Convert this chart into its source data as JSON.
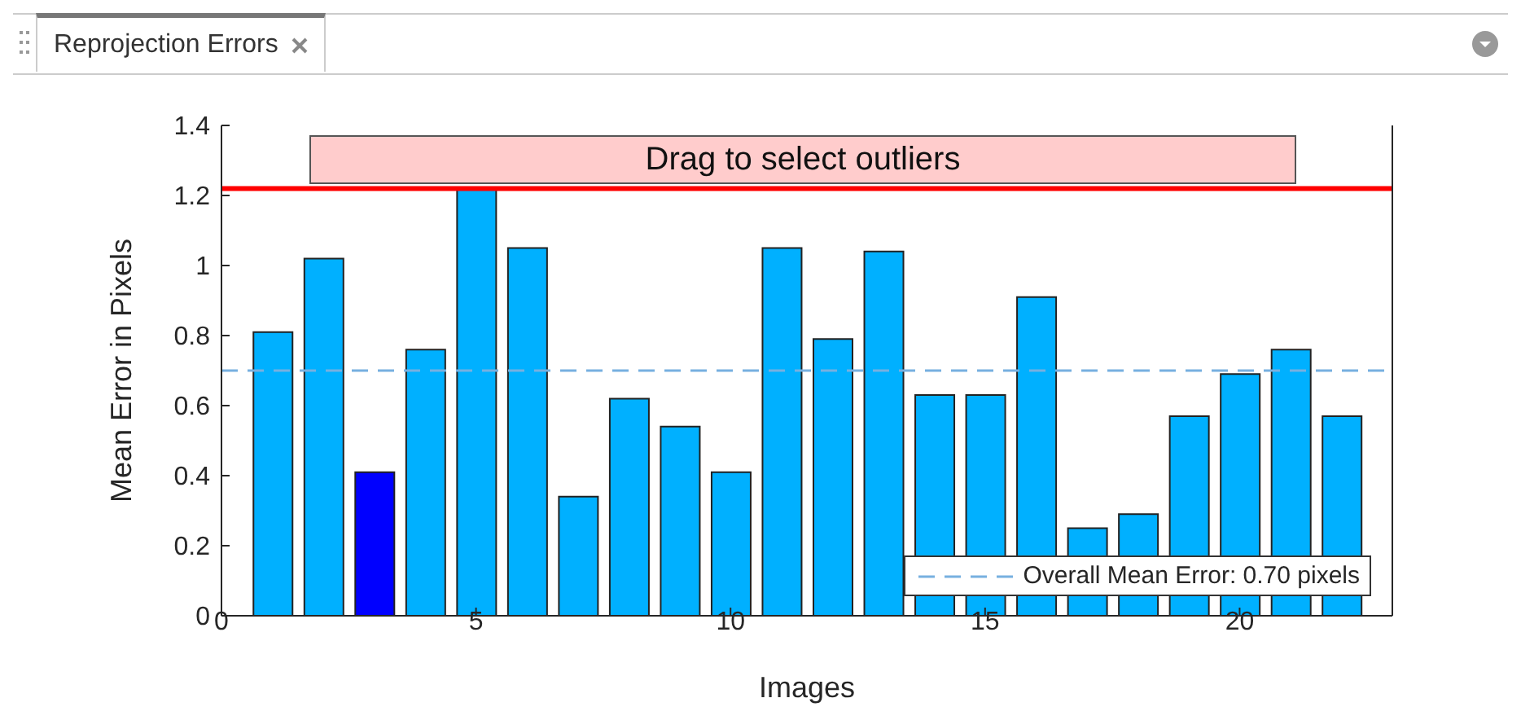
{
  "chart_data": {
    "type": "bar",
    "title": "Reprojection Errors",
    "xlabel": "Images",
    "ylabel": "Mean Error in Pixels",
    "x": [
      1,
      2,
      3,
      4,
      5,
      6,
      7,
      8,
      9,
      10,
      11,
      12,
      13,
      14,
      15,
      16,
      17,
      18,
      19,
      20,
      21,
      22
    ],
    "values": [
      0.81,
      1.02,
      0.41,
      0.76,
      1.22,
      1.05,
      0.34,
      0.62,
      0.54,
      0.41,
      1.05,
      0.79,
      1.04,
      0.63,
      0.63,
      0.91,
      0.25,
      0.29,
      0.57,
      0.69,
      0.76,
      0.57
    ],
    "colors": [
      "#00b0ff",
      "#00b0ff",
      "#0000ff",
      "#00b0ff",
      "#00b0ff",
      "#00b0ff",
      "#00b0ff",
      "#00b0ff",
      "#00b0ff",
      "#00b0ff",
      "#00b0ff",
      "#00b0ff",
      "#00b0ff",
      "#00b0ff",
      "#00b0ff",
      "#00b0ff",
      "#00b0ff",
      "#00b0ff",
      "#00b0ff",
      "#00b0ff",
      "#00b0ff",
      "#00b0ff"
    ],
    "xlim": [
      0,
      23
    ],
    "xticks": [
      0,
      5,
      10,
      15,
      20
    ],
    "ylim": [
      0,
      1.4
    ],
    "yticks": [
      0,
      0.2,
      0.4,
      0.6,
      0.8,
      1,
      1.2,
      1.4
    ],
    "ref_lines": [
      {
        "axis": "y",
        "value": 0.7,
        "label": "Overall Mean Error: 0.70 pixels",
        "color": "#77b0e0",
        "line_style": "dashed"
      },
      {
        "axis": "y",
        "value": 1.22,
        "color": "#ff0000",
        "line_style": "solid"
      }
    ],
    "annotations": [
      "Drag to select outliers"
    ],
    "legend": "bottom right",
    "grid": false
  }
}
